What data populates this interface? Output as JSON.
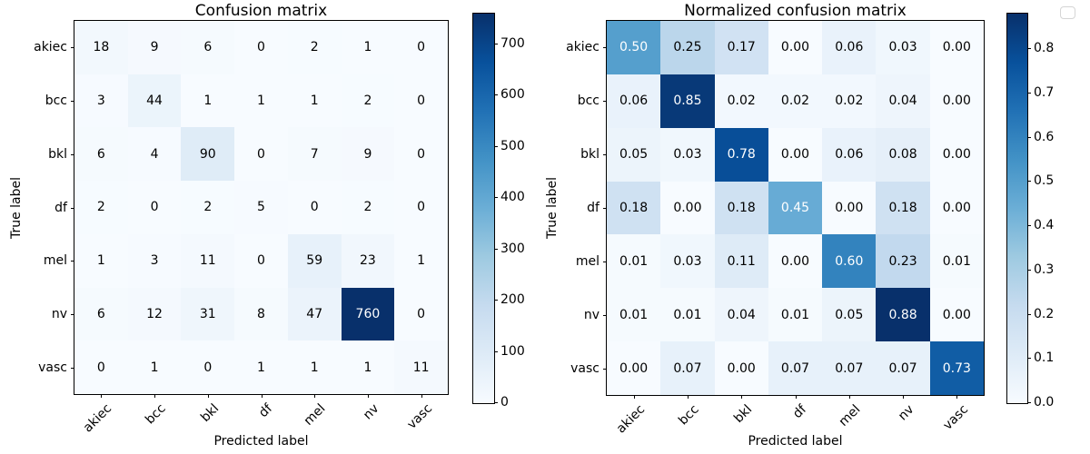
{
  "figure": {
    "background": "#ffffff",
    "text_color": "#000000",
    "spine_color": "#000000"
  },
  "colormap": {
    "name": "Blues",
    "anchors": [
      "#f7fbff",
      "#deebf7",
      "#c6dbef",
      "#9ecae1",
      "#6baed6",
      "#4292c6",
      "#2171b5",
      "#08519c",
      "#08306b"
    ],
    "cell_text_light": "#ffffff",
    "cell_text_dark": "#000000"
  },
  "legend": {
    "empty": true
  },
  "chart_data": [
    {
      "type": "heatmap",
      "title": "Confusion matrix",
      "xlabel": "Predicted label",
      "ylabel": "True label",
      "categories": [
        "akiec",
        "bcc",
        "bkl",
        "df",
        "mel",
        "nv",
        "vasc"
      ],
      "row_labels": [
        "akiec",
        "bcc",
        "bkl",
        "df",
        "mel",
        "nv",
        "vasc"
      ],
      "values": [
        [
          18,
          9,
          6,
          0,
          2,
          1,
          0
        ],
        [
          3,
          44,
          1,
          1,
          1,
          2,
          0
        ],
        [
          6,
          4,
          90,
          0,
          7,
          9,
          0
        ],
        [
          2,
          0,
          2,
          5,
          0,
          2,
          0
        ],
        [
          1,
          3,
          11,
          0,
          59,
          23,
          1
        ],
        [
          6,
          12,
          31,
          8,
          47,
          760,
          0
        ],
        [
          0,
          1,
          0,
          1,
          1,
          1,
          11
        ]
      ],
      "value_format": "int",
      "vmin": 0,
      "vmax": 760,
      "colorbar_ticks": [
        0,
        100,
        200,
        300,
        400,
        500,
        600,
        700
      ],
      "colorbar_tick_format": "int",
      "grid": false,
      "legend_position": "none"
    },
    {
      "type": "heatmap",
      "title": "Normalized confusion matrix",
      "xlabel": "Predicted label",
      "ylabel": "True label",
      "categories": [
        "akiec",
        "bcc",
        "bkl",
        "df",
        "mel",
        "nv",
        "vasc"
      ],
      "row_labels": [
        "akiec",
        "bcc",
        "bkl",
        "df",
        "mel",
        "nv",
        "vasc"
      ],
      "values": [
        [
          0.5,
          0.25,
          0.17,
          0.0,
          0.06,
          0.03,
          0.0
        ],
        [
          0.06,
          0.85,
          0.02,
          0.02,
          0.02,
          0.04,
          0.0
        ],
        [
          0.05,
          0.03,
          0.78,
          0.0,
          0.06,
          0.08,
          0.0
        ],
        [
          0.18,
          0.0,
          0.18,
          0.45,
          0.0,
          0.18,
          0.0
        ],
        [
          0.01,
          0.03,
          0.11,
          0.0,
          0.6,
          0.23,
          0.01
        ],
        [
          0.01,
          0.01,
          0.04,
          0.01,
          0.05,
          0.88,
          0.0
        ],
        [
          0.0,
          0.07,
          0.0,
          0.07,
          0.07,
          0.07,
          0.73
        ]
      ],
      "value_format": "2f",
      "vmin": 0,
      "vmax": 0.88,
      "colorbar_ticks": [
        0.0,
        0.1,
        0.2,
        0.3,
        0.4,
        0.5,
        0.6,
        0.7,
        0.8
      ],
      "colorbar_tick_format": "1f",
      "grid": false,
      "legend_position": "none"
    }
  ]
}
